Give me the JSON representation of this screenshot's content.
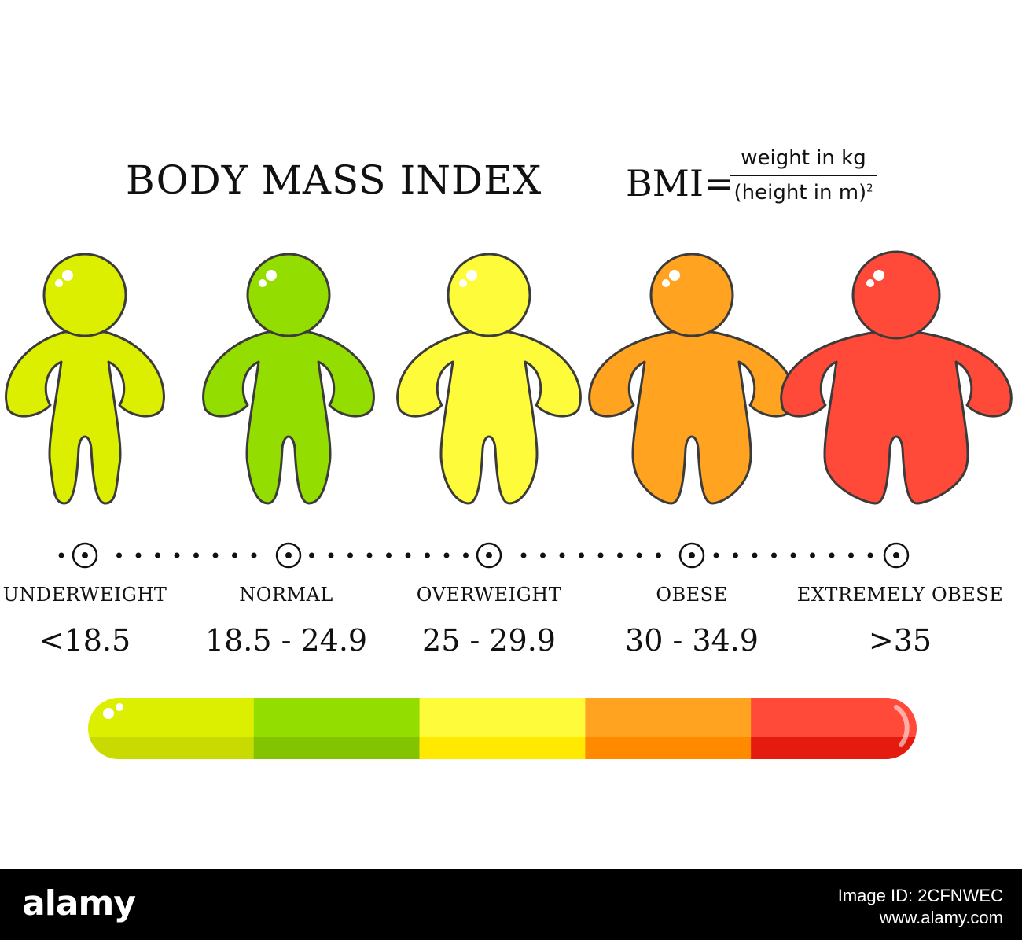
{
  "title": "BODY MASS INDEX",
  "formula": {
    "lhs": "BMI=",
    "numerator": "weight in kg",
    "denominator": "(height in m)",
    "exponent": "2"
  },
  "categories": [
    {
      "label": "UNDERWEIGHT",
      "range": "<18.5",
      "color": "#dcef00",
      "shade": "#c8da00"
    },
    {
      "label": "NORMAL",
      "range": "18.5 - 24.9",
      "color": "#93dd00",
      "shade": "#82c400"
    },
    {
      "label": "OVERWEIGHT",
      "range": "25 - 29.9",
      "color": "#fdfb3a",
      "shade": "#ffe900"
    },
    {
      "label": "OBESE",
      "range": "30 - 34.9",
      "color": "#ffa321",
      "shade": "#ff8a00"
    },
    {
      "label": "EXTREMELY OBESE",
      "range": ">35",
      "color": "#ff4a3a",
      "shade": "#e51b10"
    }
  ],
  "footer": {
    "brand": "alamy",
    "image_id": "Image ID: 2CFNWEC",
    "site": "www.alamy.com"
  }
}
